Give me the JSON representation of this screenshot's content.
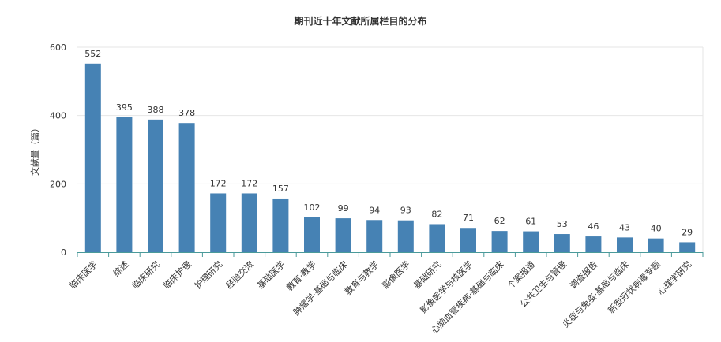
{
  "chart_data": {
    "type": "bar",
    "title": "期刊近十年文献所属栏目的分布",
    "xlabel": "",
    "ylabel": "文献量（篇）",
    "ylim": [
      0,
      600
    ],
    "yticks": [
      0,
      200,
      400,
      600
    ],
    "grid": true,
    "legend": "none",
    "colors": {
      "bar": "#4682b4",
      "grid": "#e6e6e6",
      "axis": "#4a9a9a"
    },
    "categories": [
      "临床医学",
      "综述",
      "临床研究",
      "临床护理",
      "护理研究",
      "经验交流",
      "基础医学",
      "教育·教学",
      "肿瘤学·基础与临床",
      "教育与教学",
      "影像医学",
      "基础研究",
      "影像医学与核医学",
      "心脑血管疾病·基础与临床",
      "个案报道",
      "公共卫生与管理",
      "调查报告",
      "炎症与免疫·基础与临床",
      "新型冠状病毒专题",
      "心理学研究"
    ],
    "values": [
      552,
      395,
      388,
      378,
      172,
      172,
      157,
      102,
      99,
      94,
      93,
      82,
      71,
      62,
      61,
      53,
      46,
      43,
      40,
      29
    ]
  }
}
